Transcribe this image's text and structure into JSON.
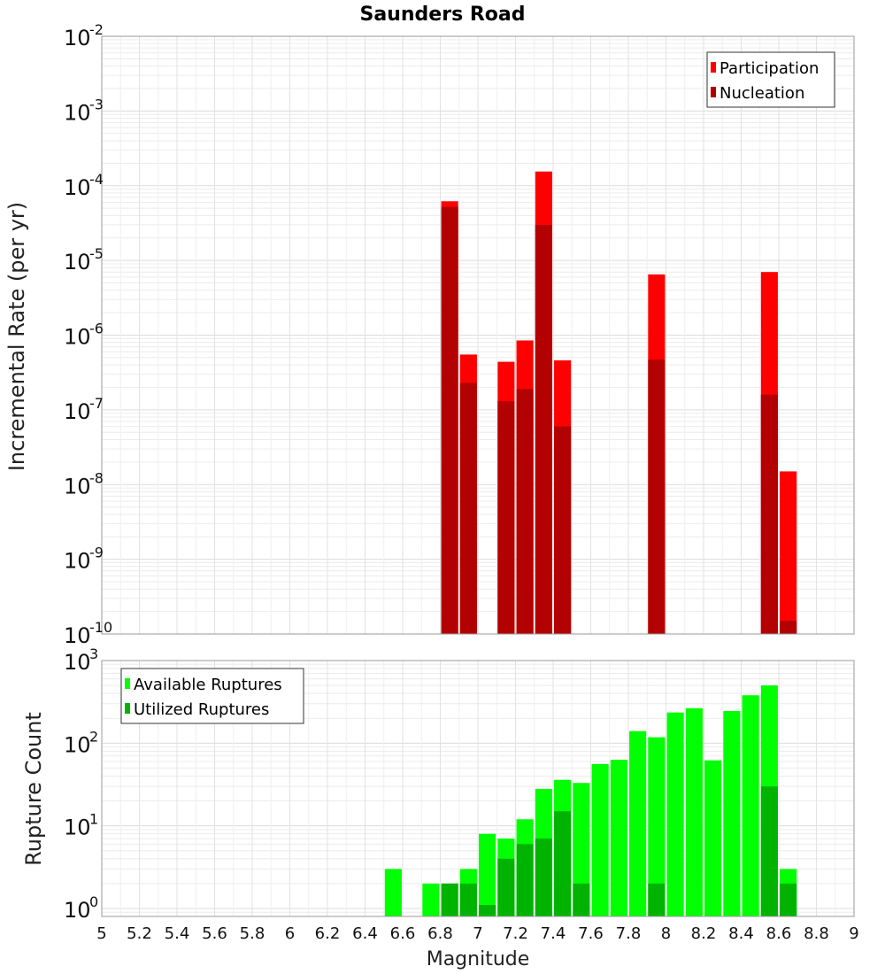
{
  "title": "Saunders Road",
  "xlabel": "Magnitude",
  "x_ticks": [
    "5",
    "5.2",
    "5.4",
    "5.6",
    "5.8",
    "6",
    "6.2",
    "6.4",
    "6.6",
    "6.8",
    "7",
    "7.2",
    "7.4",
    "7.6",
    "7.8",
    "8",
    "8.2",
    "8.4",
    "8.6",
    "8.8",
    "9"
  ],
  "chart_data": [
    {
      "type": "bar",
      "ylabel": "Incremental Rate (per yr)",
      "xlim": [
        5,
        9
      ],
      "ylim": [
        1e-10,
        0.01
      ],
      "yscale": "log",
      "grid": true,
      "legend_position": "top-right",
      "bar_width": 0.09,
      "y_tick_exponents": [
        "-2",
        "-3",
        "-4",
        "-5",
        "-6",
        "-7",
        "-8",
        "-9",
        "-10"
      ],
      "series": [
        {
          "name": "Participation",
          "color": "#ff0000",
          "x": [
            6.85,
            6.95,
            7.15,
            7.25,
            7.35,
            7.45,
            7.95,
            8.55,
            8.65
          ],
          "values": [
            6.2e-05,
            5.5e-07,
            4.4e-07,
            8.5e-07,
            0.000155,
            4.6e-07,
            6.5e-06,
            7e-06,
            1.5e-08
          ]
        },
        {
          "name": "Nucleation",
          "color": "#b30000",
          "x": [
            6.85,
            6.95,
            7.15,
            7.25,
            7.35,
            7.45,
            7.95,
            8.55,
            8.65
          ],
          "values": [
            5.2e-05,
            2.3e-07,
            1.3e-07,
            1.9e-07,
            3e-05,
            6e-08,
            4.7e-07,
            1.6e-07,
            1.5e-10
          ]
        }
      ]
    },
    {
      "type": "bar",
      "ylabel": "Rupture Count",
      "xlim": [
        5,
        9
      ],
      "ylim": [
        0.8,
        1000
      ],
      "yscale": "log",
      "grid": true,
      "legend_position": "top-left",
      "bar_width": 0.09,
      "y_tick_exponents": [
        "3",
        "2",
        "1",
        "0"
      ],
      "series": [
        {
          "name": "Available Ruptures",
          "color": "#00ff00",
          "x": [
            6.55,
            6.75,
            6.85,
            6.95,
            7.05,
            7.15,
            7.25,
            7.35,
            7.45,
            7.55,
            7.65,
            7.75,
            7.85,
            7.95,
            8.05,
            8.15,
            8.25,
            8.35,
            8.45,
            8.55,
            8.65
          ],
          "values": [
            3,
            2,
            2,
            3,
            8,
            7,
            12,
            28,
            36,
            33,
            56,
            63,
            140,
            118,
            235,
            265,
            62,
            245,
            380,
            500,
            3
          ]
        },
        {
          "name": "Utilized Ruptures",
          "color": "#00b300",
          "x": [
            6.85,
            6.95,
            7.05,
            7.15,
            7.25,
            7.35,
            7.45,
            7.55,
            7.95,
            8.55,
            8.65
          ],
          "values": [
            2,
            2,
            1.1,
            4,
            6,
            7,
            15,
            2,
            2,
            30,
            2
          ]
        }
      ]
    }
  ]
}
